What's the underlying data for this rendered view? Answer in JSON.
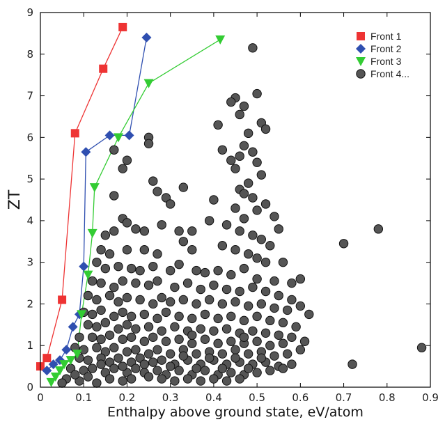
{
  "chart_data": {
    "type": "scatter",
    "title": "",
    "xlabel": "Enthalpy above ground state, eV/atom",
    "ylabel": "ZT",
    "xlim": [
      0,
      0.9
    ],
    "ylim": [
      0,
      9
    ],
    "xticks": [
      "0",
      "0.1",
      "0.2",
      "0.3",
      "0.4",
      "0.5",
      "0.6",
      "0.7",
      "0.8",
      "0.9"
    ],
    "yticks": [
      "0",
      "1",
      "2",
      "3",
      "4",
      "5",
      "6",
      "7",
      "8",
      "9"
    ],
    "grid": false,
    "legend_position": "top-right",
    "series": [
      {
        "name": "Front 1",
        "marker": "square",
        "color": "#ee3333",
        "line": true,
        "points": [
          [
            0.0,
            0.5
          ],
          [
            0.015,
            0.7
          ],
          [
            0.05,
            2.1
          ],
          [
            0.08,
            6.1
          ],
          [
            0.145,
            7.65
          ],
          [
            0.19,
            8.65
          ]
        ]
      },
      {
        "name": "Front 2",
        "marker": "diamond",
        "color": "#2f4fb0",
        "line": true,
        "points": [
          [
            0.015,
            0.4
          ],
          [
            0.03,
            0.55
          ],
          [
            0.045,
            0.65
          ],
          [
            0.06,
            0.9
          ],
          [
            0.075,
            1.45
          ],
          [
            0.09,
            1.75
          ],
          [
            0.1,
            2.9
          ],
          [
            0.105,
            5.65
          ],
          [
            0.16,
            6.05
          ],
          [
            0.205,
            6.05
          ],
          [
            0.245,
            8.4
          ]
        ]
      },
      {
        "name": "Front 3",
        "marker": "triangle-down",
        "color": "#33cc33",
        "line": true,
        "points": [
          [
            0.025,
            0.12
          ],
          [
            0.035,
            0.25
          ],
          [
            0.045,
            0.4
          ],
          [
            0.055,
            0.55
          ],
          [
            0.07,
            0.65
          ],
          [
            0.085,
            0.8
          ],
          [
            0.095,
            1.75
          ],
          [
            0.11,
            2.7
          ],
          [
            0.12,
            3.7
          ],
          [
            0.125,
            4.8
          ],
          [
            0.18,
            6.0
          ],
          [
            0.25,
            7.3
          ],
          [
            0.415,
            8.35
          ]
        ]
      },
      {
        "name": "Front 4...",
        "marker": "circle",
        "color": "#555555",
        "line": false,
        "points": [
          [
            0.49,
            8.15
          ],
          [
            0.45,
            6.95
          ],
          [
            0.5,
            7.05
          ],
          [
            0.47,
            6.75
          ],
          [
            0.46,
            6.55
          ],
          [
            0.44,
            6.85
          ],
          [
            0.51,
            6.35
          ],
          [
            0.52,
            6.2
          ],
          [
            0.48,
            6.1
          ],
          [
            0.41,
            6.3
          ],
          [
            0.25,
            6.0
          ],
          [
            0.25,
            5.85
          ],
          [
            0.42,
            5.7
          ],
          [
            0.47,
            5.8
          ],
          [
            0.46,
            5.55
          ],
          [
            0.44,
            5.45
          ],
          [
            0.49,
            5.65
          ],
          [
            0.5,
            5.4
          ],
          [
            0.45,
            5.25
          ],
          [
            0.51,
            5.1
          ],
          [
            0.2,
            5.45
          ],
          [
            0.19,
            5.25
          ],
          [
            0.17,
            5.7
          ],
          [
            0.48,
            4.9
          ],
          [
            0.46,
            4.75
          ],
          [
            0.26,
            4.95
          ],
          [
            0.33,
            4.8
          ],
          [
            0.27,
            4.7
          ],
          [
            0.29,
            4.55
          ],
          [
            0.3,
            4.4
          ],
          [
            0.17,
            4.6
          ],
          [
            0.4,
            4.5
          ],
          [
            0.47,
            4.65
          ],
          [
            0.49,
            4.55
          ],
          [
            0.52,
            4.4
          ],
          [
            0.54,
            4.1
          ],
          [
            0.5,
            4.25
          ],
          [
            0.45,
            4.3
          ],
          [
            0.47,
            4.05
          ],
          [
            0.43,
            3.9
          ],
          [
            0.19,
            4.05
          ],
          [
            0.2,
            3.95
          ],
          [
            0.22,
            3.8
          ],
          [
            0.24,
            3.75
          ],
          [
            0.28,
            3.9
          ],
          [
            0.32,
            3.75
          ],
          [
            0.35,
            3.75
          ],
          [
            0.17,
            3.75
          ],
          [
            0.15,
            3.65
          ],
          [
            0.39,
            4.0
          ],
          [
            0.46,
            3.75
          ],
          [
            0.49,
            3.65
          ],
          [
            0.51,
            3.55
          ],
          [
            0.55,
            3.8
          ],
          [
            0.53,
            3.4
          ],
          [
            0.7,
            3.45
          ],
          [
            0.78,
            3.8
          ],
          [
            0.14,
            3.3
          ],
          [
            0.16,
            3.2
          ],
          [
            0.2,
            3.3
          ],
          [
            0.24,
            3.3
          ],
          [
            0.27,
            3.2
          ],
          [
            0.33,
            3.5
          ],
          [
            0.35,
            3.3
          ],
          [
            0.42,
            3.4
          ],
          [
            0.45,
            3.3
          ],
          [
            0.48,
            3.2
          ],
          [
            0.5,
            3.1
          ],
          [
            0.52,
            3.0
          ],
          [
            0.56,
            3.0
          ],
          [
            0.13,
            3.0
          ],
          [
            0.15,
            2.85
          ],
          [
            0.18,
            2.9
          ],
          [
            0.21,
            2.85
          ],
          [
            0.23,
            2.8
          ],
          [
            0.26,
            2.9
          ],
          [
            0.3,
            2.8
          ],
          [
            0.32,
            2.95
          ],
          [
            0.36,
            2.8
          ],
          [
            0.38,
            2.75
          ],
          [
            0.41,
            2.8
          ],
          [
            0.44,
            2.7
          ],
          [
            0.47,
            2.85
          ],
          [
            0.5,
            2.6
          ],
          [
            0.54,
            2.55
          ],
          [
            0.58,
            2.5
          ],
          [
            0.6,
            2.6
          ],
          [
            0.12,
            2.55
          ],
          [
            0.14,
            2.5
          ],
          [
            0.17,
            2.4
          ],
          [
            0.19,
            2.55
          ],
          [
            0.22,
            2.5
          ],
          [
            0.25,
            2.45
          ],
          [
            0.27,
            2.55
          ],
          [
            0.31,
            2.4
          ],
          [
            0.34,
            2.5
          ],
          [
            0.37,
            2.35
          ],
          [
            0.4,
            2.45
          ],
          [
            0.43,
            2.35
          ],
          [
            0.46,
            2.3
          ],
          [
            0.49,
            2.4
          ],
          [
            0.52,
            2.3
          ],
          [
            0.55,
            2.2
          ],
          [
            0.58,
            2.1
          ],
          [
            0.11,
            2.2
          ],
          [
            0.13,
            2.1
          ],
          [
            0.16,
            2.2
          ],
          [
            0.18,
            2.05
          ],
          [
            0.2,
            2.15
          ],
          [
            0.23,
            2.1
          ],
          [
            0.26,
            2.0
          ],
          [
            0.28,
            2.15
          ],
          [
            0.3,
            2.05
          ],
          [
            0.33,
            2.1
          ],
          [
            0.36,
            2.0
          ],
          [
            0.39,
            2.1
          ],
          [
            0.42,
            2.0
          ],
          [
            0.45,
            2.05
          ],
          [
            0.48,
            1.95
          ],
          [
            0.51,
            2.0
          ],
          [
            0.54,
            1.9
          ],
          [
            0.57,
            1.85
          ],
          [
            0.6,
            1.95
          ],
          [
            0.62,
            1.75
          ],
          [
            0.1,
            1.8
          ],
          [
            0.12,
            1.75
          ],
          [
            0.14,
            1.85
          ],
          [
            0.17,
            1.7
          ],
          [
            0.19,
            1.8
          ],
          [
            0.21,
            1.7
          ],
          [
            0.24,
            1.75
          ],
          [
            0.27,
            1.65
          ],
          [
            0.29,
            1.8
          ],
          [
            0.32,
            1.7
          ],
          [
            0.35,
            1.65
          ],
          [
            0.38,
            1.75
          ],
          [
            0.41,
            1.65
          ],
          [
            0.44,
            1.7
          ],
          [
            0.47,
            1.6
          ],
          [
            0.5,
            1.7
          ],
          [
            0.53,
            1.6
          ],
          [
            0.56,
            1.55
          ],
          [
            0.59,
            1.45
          ],
          [
            0.11,
            1.5
          ],
          [
            0.13,
            1.45
          ],
          [
            0.15,
            1.55
          ],
          [
            0.18,
            1.4
          ],
          [
            0.2,
            1.5
          ],
          [
            0.22,
            1.4
          ],
          [
            0.25,
            1.45
          ],
          [
            0.28,
            1.35
          ],
          [
            0.31,
            1.45
          ],
          [
            0.34,
            1.35
          ],
          [
            0.37,
            1.4
          ],
          [
            0.4,
            1.35
          ],
          [
            0.43,
            1.4
          ],
          [
            0.46,
            1.3
          ],
          [
            0.49,
            1.35
          ],
          [
            0.52,
            1.3
          ],
          [
            0.55,
            1.25
          ],
          [
            0.58,
            1.2
          ],
          [
            0.61,
            1.1
          ],
          [
            0.09,
            1.2
          ],
          [
            0.12,
            1.2
          ],
          [
            0.14,
            1.15
          ],
          [
            0.16,
            1.25
          ],
          [
            0.19,
            1.15
          ],
          [
            0.21,
            1.2
          ],
          [
            0.24,
            1.1
          ],
          [
            0.26,
            1.2
          ],
          [
            0.29,
            1.1
          ],
          [
            0.32,
            1.15
          ],
          [
            0.35,
            1.05
          ],
          [
            0.38,
            1.15
          ],
          [
            0.41,
            1.05
          ],
          [
            0.44,
            1.1
          ],
          [
            0.47,
            1.05
          ],
          [
            0.5,
            1.1
          ],
          [
            0.53,
            1.0
          ],
          [
            0.56,
            1.05
          ],
          [
            0.6,
            0.9
          ],
          [
            0.88,
            0.95
          ],
          [
            0.08,
            0.95
          ],
          [
            0.1,
            0.9
          ],
          [
            0.13,
            0.95
          ],
          [
            0.15,
            0.85
          ],
          [
            0.17,
            0.95
          ],
          [
            0.2,
            0.85
          ],
          [
            0.22,
            0.9
          ],
          [
            0.25,
            0.8
          ],
          [
            0.27,
            0.9
          ],
          [
            0.3,
            0.8
          ],
          [
            0.33,
            0.9
          ],
          [
            0.36,
            0.8
          ],
          [
            0.39,
            0.85
          ],
          [
            0.42,
            0.8
          ],
          [
            0.45,
            0.9
          ],
          [
            0.48,
            0.8
          ],
          [
            0.51,
            0.85
          ],
          [
            0.54,
            0.75
          ],
          [
            0.57,
            0.8
          ],
          [
            0.09,
            0.7
          ],
          [
            0.11,
            0.65
          ],
          [
            0.14,
            0.7
          ],
          [
            0.16,
            0.6
          ],
          [
            0.18,
            0.7
          ],
          [
            0.21,
            0.6
          ],
          [
            0.23,
            0.7
          ],
          [
            0.26,
            0.6
          ],
          [
            0.28,
            0.65
          ],
          [
            0.31,
            0.55
          ],
          [
            0.34,
            0.65
          ],
          [
            0.37,
            0.55
          ],
          [
            0.4,
            0.65
          ],
          [
            0.43,
            0.55
          ],
          [
            0.46,
            0.6
          ],
          [
            0.49,
            0.55
          ],
          [
            0.52,
            0.6
          ],
          [
            0.55,
            0.5
          ],
          [
            0.58,
            0.55
          ],
          [
            0.07,
            0.45
          ],
          [
            0.1,
            0.4
          ],
          [
            0.12,
            0.45
          ],
          [
            0.15,
            0.35
          ],
          [
            0.17,
            0.45
          ],
          [
            0.2,
            0.35
          ],
          [
            0.22,
            0.45
          ],
          [
            0.24,
            0.35
          ],
          [
            0.27,
            0.4
          ],
          [
            0.29,
            0.3
          ],
          [
            0.32,
            0.4
          ],
          [
            0.35,
            0.3
          ],
          [
            0.38,
            0.4
          ],
          [
            0.41,
            0.3
          ],
          [
            0.44,
            0.35
          ],
          [
            0.47,
            0.3
          ],
          [
            0.5,
            0.35
          ],
          [
            0.53,
            0.4
          ],
          [
            0.56,
            0.45
          ],
          [
            0.72,
            0.55
          ],
          [
            0.06,
            0.2
          ],
          [
            0.09,
            0.15
          ],
          [
            0.11,
            0.25
          ],
          [
            0.13,
            0.1
          ],
          [
            0.16,
            0.2
          ],
          [
            0.19,
            0.15
          ],
          [
            0.21,
            0.2
          ],
          [
            0.25,
            0.25
          ],
          [
            0.28,
            0.2
          ],
          [
            0.31,
            0.15
          ],
          [
            0.34,
            0.2
          ],
          [
            0.37,
            0.15
          ],
          [
            0.4,
            0.2
          ],
          [
            0.43,
            0.15
          ],
          [
            0.46,
            0.2
          ],
          [
            0.05,
            0.1
          ],
          [
            0.08,
            0.3
          ],
          [
            0.14,
            0.55
          ],
          [
            0.19,
            0.5
          ],
          [
            0.24,
            0.55
          ],
          [
            0.3,
            0.5
          ],
          [
            0.36,
            0.45
          ],
          [
            0.42,
            0.45
          ],
          [
            0.48,
            0.45
          ],
          [
            0.33,
            0.75
          ],
          [
            0.39,
            0.7
          ],
          [
            0.45,
            0.7
          ],
          [
            0.51,
            0.7
          ],
          [
            0.35,
            1.25
          ],
          [
            0.47,
            1.2
          ]
        ]
      }
    ]
  }
}
